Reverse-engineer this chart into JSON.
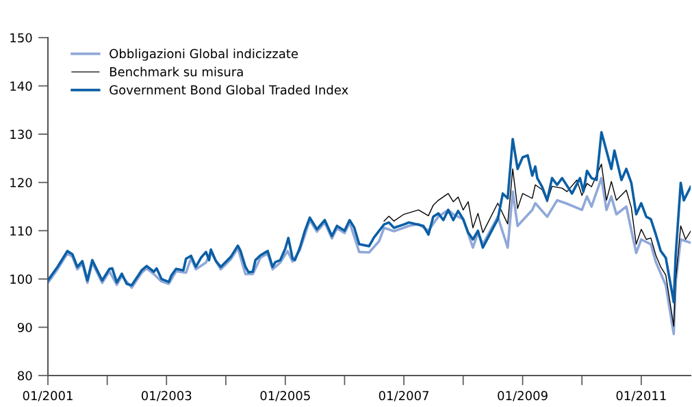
{
  "chart_data": {
    "type": "line",
    "ylim": [
      80,
      150
    ],
    "yticks": [
      80,
      90,
      100,
      110,
      120,
      130,
      140,
      150
    ],
    "xlim": [
      "2001-01-01",
      "2011-11-01"
    ],
    "xticks": [
      {
        "value": "2001-01-01",
        "label": "01/2001"
      },
      {
        "value": "2002-01-01",
        "label": null
      },
      {
        "value": "2003-01-01",
        "label": "01/2003"
      },
      {
        "value": "2004-01-01",
        "label": null
      },
      {
        "value": "2005-01-01",
        "label": "01/2005"
      },
      {
        "value": "2006-01-01",
        "label": null
      },
      {
        "value": "2007-01-01",
        "label": "01/2007"
      },
      {
        "value": "2008-01-01",
        "label": null
      },
      {
        "value": "2009-01-01",
        "label": "01/2009"
      },
      {
        "value": "2010-01-01",
        "label": null
      },
      {
        "value": "2011-01-01",
        "label": "01/2011"
      }
    ],
    "grid": false,
    "legend": "top left",
    "line_style": "solid",
    "marker": "none",
    "series": [
      {
        "name": "Obbligazioni Global indicizzate",
        "color": "#8fa8d8",
        "x": [
          "2001-01-01",
          "2001-03-01",
          "2001-05-01",
          "2001-06-01",
          "2001-07-01",
          "2001-08-01",
          "2001-09-01",
          "2001-10-01",
          "2001-12-01",
          "2002-01-15",
          "2002-03-01",
          "2002-04-01",
          "2002-06-01",
          "2002-08-01",
          "2002-09-01",
          "2002-10-15",
          "2002-12-01",
          "2003-01-15",
          "2003-03-01",
          "2003-05-01",
          "2003-06-01",
          "2003-07-01",
          "2003-09-01",
          "2003-10-01",
          "2003-12-01",
          "2004-02-01",
          "2004-03-15",
          "2004-05-01",
          "2004-06-15",
          "2004-08-01",
          "2004-09-15",
          "2004-10-15",
          "2004-12-01",
          "2005-01-15",
          "2005-02-15",
          "2005-04-01",
          "2005-06-01",
          "2005-07-15",
          "2005-09-01",
          "2005-10-15",
          "2005-11-15",
          "2006-01-01",
          "2006-02-01",
          "2006-04-01",
          "2006-06-01",
          "2006-08-01",
          "2006-09-01",
          "2006-11-01",
          "2007-02-01",
          "2007-04-01",
          "2007-06-01",
          "2007-08-01",
          "2007-10-01",
          "2007-11-01",
          "2008-01-01",
          "2008-03-01",
          "2008-04-01",
          "2008-05-01",
          "2008-08-01",
          "2008-10-01",
          "2008-11-01",
          "2008-12-01",
          "2009-03-01",
          "2009-03-20",
          "2009-06-01",
          "2009-08-01",
          "2009-10-01",
          "2010-01-01",
          "2010-02-01",
          "2010-03-01",
          "2010-05-01",
          "2010-06-01",
          "2010-07-01",
          "2010-08-01",
          "2010-10-01",
          "2010-12-01",
          "2011-01-01",
          "2011-03-01",
          "2011-04-01",
          "2011-06-01",
          "2011-07-20",
          "2011-08-01",
          "2011-09-01",
          "2011-11-01"
        ],
        "values": [
          99.2,
          102.0,
          105.3,
          104.6,
          102.0,
          103.2,
          99.2,
          103.4,
          99.2,
          101.6,
          98.8,
          100.6,
          98.2,
          101.3,
          102.2,
          101.0,
          99.5,
          99.0,
          101.6,
          101.3,
          104.3,
          102.0,
          103.4,
          105.6,
          102.0,
          104.1,
          106.4,
          101.0,
          101.0,
          104.4,
          105.3,
          102.0,
          103.4,
          105.8,
          103.6,
          106.0,
          112.2,
          109.8,
          111.7,
          108.4,
          110.5,
          109.5,
          111.7,
          105.6,
          105.5,
          107.8,
          110.6,
          109.9,
          111.0,
          111.4,
          110.0,
          112.9,
          114.3,
          113.4,
          112.4,
          106.5,
          109.6,
          107.2,
          112.9,
          106.5,
          118.1,
          111.0,
          114.3,
          115.7,
          112.9,
          116.3,
          115.6,
          114.3,
          117.1,
          115.0,
          120.9,
          114.3,
          117.1,
          113.4,
          115.0,
          105.4,
          108.2,
          107.2,
          103.5,
          98.7,
          88.6,
          99.3,
          108.2,
          107.5
        ]
      },
      {
        "name": "Benchmark su misura",
        "color": "#000000",
        "x": [
          "2006-09-01",
          "2006-10-01",
          "2006-11-01",
          "2007-01-01",
          "2007-04-01",
          "2007-06-01",
          "2007-07-01",
          "2007-08-01",
          "2007-10-01",
          "2007-11-01",
          "2007-12-01",
          "2008-01-01",
          "2008-02-01",
          "2008-03-01",
          "2008-04-01",
          "2008-05-01",
          "2008-08-01",
          "2008-10-01",
          "2008-11-01",
          "2008-12-01",
          "2009-01-01",
          "2009-03-01",
          "2009-03-20",
          "2009-05-01",
          "2009-06-01",
          "2009-07-01",
          "2009-09-01",
          "2009-10-01",
          "2009-12-01",
          "2010-01-01",
          "2010-02-01",
          "2010-03-01",
          "2010-05-01",
          "2010-06-01",
          "2010-07-01",
          "2010-08-01",
          "2010-10-01",
          "2010-11-01",
          "2010-12-01",
          "2011-01-01",
          "2011-02-01",
          "2011-03-01",
          "2011-04-01",
          "2011-05-01",
          "2011-06-01",
          "2011-07-20",
          "2011-08-01",
          "2011-09-01",
          "2011-10-01",
          "2011-11-01"
        ],
        "values": [
          112.0,
          113.0,
          112.0,
          113.4,
          114.3,
          113.1,
          115.3,
          116.3,
          117.7,
          116.0,
          117.0,
          114.3,
          116.0,
          110.6,
          113.6,
          109.6,
          115.7,
          111.4,
          122.8,
          114.6,
          117.7,
          116.7,
          119.5,
          118.5,
          116.0,
          119.2,
          118.8,
          118.1,
          120.5,
          117.3,
          119.8,
          119.1,
          123.8,
          116.3,
          120.2,
          116.3,
          118.4,
          114.8,
          107.2,
          110.3,
          108.2,
          108.5,
          104.9,
          102.5,
          100.8,
          90.2,
          99.7,
          111.0,
          108.2,
          109.9
        ]
      },
      {
        "name": "Government Bond Global Traded Index",
        "color": "#0b5fa5",
        "x": [
          "2001-01-01",
          "2001-03-01",
          "2001-05-01",
          "2001-06-01",
          "2001-07-01",
          "2001-08-01",
          "2001-09-01",
          "2001-10-01",
          "2001-12-01",
          "2002-01-15",
          "2002-02-01",
          "2002-03-01",
          "2002-04-01",
          "2002-05-01",
          "2002-06-01",
          "2002-08-01",
          "2002-09-01",
          "2002-10-15",
          "2002-11-01",
          "2002-12-01",
          "2003-01-15",
          "2003-02-01",
          "2003-03-01",
          "2003-04-15",
          "2003-05-01",
          "2003-06-01",
          "2003-07-01",
          "2003-08-01",
          "2003-09-01",
          "2003-09-20",
          "2003-10-01",
          "2003-11-01",
          "2003-12-01",
          "2004-02-01",
          "2004-03-15",
          "2004-04-01",
          "2004-05-01",
          "2004-05-20",
          "2004-06-15",
          "2004-07-01",
          "2004-08-01",
          "2004-09-15",
          "2004-10-15",
          "2004-11-01",
          "2004-12-01",
          "2005-01-01",
          "2005-01-20",
          "2005-02-15",
          "2005-03-01",
          "2005-04-01",
          "2005-05-01",
          "2005-06-01",
          "2005-07-15",
          "2005-09-01",
          "2005-10-15",
          "2005-11-15",
          "2006-01-01",
          "2006-02-01",
          "2006-03-01",
          "2006-04-01",
          "2006-06-01",
          "2006-07-01",
          "2006-09-01",
          "2006-10-01",
          "2006-11-01",
          "2007-01-01",
          "2007-02-01",
          "2007-05-01",
          "2007-06-01",
          "2007-07-01",
          "2007-08-01",
          "2007-09-01",
          "2007-10-01",
          "2007-11-01",
          "2007-12-01",
          "2008-01-01",
          "2008-02-01",
          "2008-03-01",
          "2008-04-01",
          "2008-05-01",
          "2008-06-01",
          "2008-08-01",
          "2008-09-01",
          "2008-10-01",
          "2008-11-01",
          "2008-12-01",
          "2009-01-01",
          "2009-02-01",
          "2009-03-01",
          "2009-03-20",
          "2009-04-01",
          "2009-05-01",
          "2009-06-01",
          "2009-07-01",
          "2009-08-01",
          "2009-09-01",
          "2009-11-01",
          "2009-12-20",
          "2010-01-10",
          "2010-02-01",
          "2010-03-01",
          "2010-04-01",
          "2010-05-01",
          "2010-07-01",
          "2010-07-20",
          "2010-09-01",
          "2010-10-01",
          "2010-11-01",
          "2010-12-01",
          "2011-01-01",
          "2011-02-01",
          "2011-03-01",
          "2011-04-01",
          "2011-05-01",
          "2011-06-01",
          "2011-07-20",
          "2011-08-01",
          "2011-09-01",
          "2011-09-20",
          "2011-11-01"
        ],
        "values": [
          99.7,
          102.5,
          105.8,
          105.1,
          102.5,
          103.7,
          99.7,
          103.9,
          99.7,
          102.1,
          102.2,
          99.3,
          101.1,
          99.0,
          98.7,
          101.8,
          102.7,
          101.5,
          102.2,
          100.0,
          99.4,
          100.8,
          102.1,
          101.8,
          104.2,
          104.8,
          102.5,
          104.4,
          105.6,
          103.9,
          106.1,
          103.7,
          102.5,
          104.6,
          106.9,
          105.8,
          102.5,
          101.4,
          101.5,
          103.9,
          104.9,
          105.8,
          102.5,
          103.5,
          103.9,
          106.3,
          108.5,
          104.2,
          103.9,
          106.5,
          109.9,
          112.7,
          110.3,
          112.2,
          108.9,
          111.0,
          110.0,
          112.2,
          110.7,
          107.2,
          106.8,
          108.6,
          111.3,
          111.7,
          110.6,
          111.3,
          111.7,
          111.0,
          109.2,
          112.9,
          113.6,
          112.2,
          114.3,
          112.2,
          114.1,
          112.4,
          109.6,
          108.2,
          110.0,
          106.5,
          108.5,
          112.4,
          117.7,
          116.7,
          129.0,
          122.8,
          125.2,
          125.6,
          121.4,
          123.3,
          120.9,
          119.1,
          116.3,
          120.9,
          119.5,
          120.9,
          117.7,
          120.9,
          118.1,
          122.4,
          120.9,
          120.5,
          130.4,
          122.8,
          126.6,
          120.5,
          122.8,
          119.9,
          113.4,
          115.7,
          112.9,
          112.4,
          109.2,
          105.8,
          104.4,
          95.2,
          104.9,
          119.9,
          116.3,
          119.1
        ]
      }
    ]
  }
}
